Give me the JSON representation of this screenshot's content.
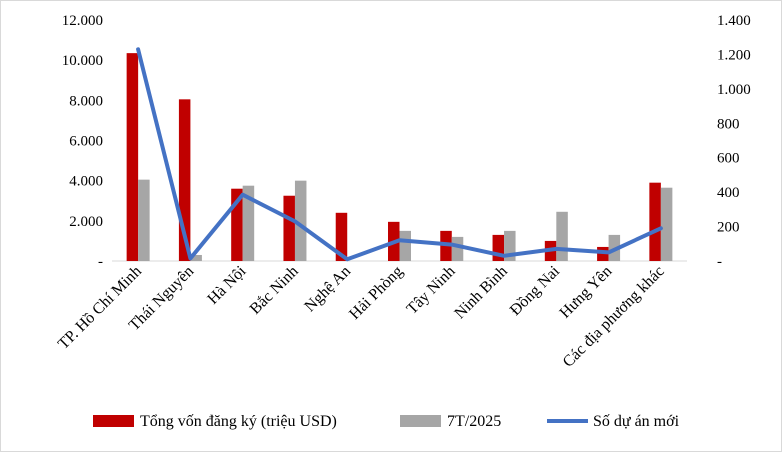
{
  "chart_data": {
    "type": "bar",
    "categories": [
      "TP. Hồ Chí Minh",
      "Thái Nguyên",
      "Hà Nội",
      "Bắc Ninh",
      "Nghệ An",
      "Hải Phòng",
      "Tây Ninh",
      "Ninh Bình",
      "Đồng Nai",
      "Hưng Yên",
      "Các địa phương khác"
    ],
    "series": [
      {
        "name": "Tổng vốn đăng ký (triệu USD)",
        "type": "bar",
        "axis": "left",
        "color": "#c00000",
        "values": [
          10350,
          8050,
          3600,
          3250,
          2400,
          1950,
          1500,
          1300,
          1000,
          700,
          3900
        ]
      },
      {
        "name": "7T/2025",
        "type": "bar",
        "axis": "left",
        "color": "#a6a6a6",
        "values": [
          4050,
          300,
          3750,
          4000,
          0,
          1500,
          1200,
          1500,
          2450,
          1300,
          3650
        ]
      },
      {
        "name": "Số dự án mới",
        "type": "line",
        "axis": "right",
        "color": "#4472c4",
        "values": [
          1230,
          15,
          385,
          230,
          10,
          120,
          95,
          30,
          70,
          50,
          190
        ]
      }
    ],
    "y_left": {
      "min": 0,
      "max": 12000,
      "ticks": [
        "-",
        "2.000",
        "4.000",
        "6.000",
        "8.000",
        "10.000",
        "12.000"
      ]
    },
    "y_right": {
      "min": 0,
      "max": 1400,
      "ticks": [
        "-",
        "200",
        "400",
        "600",
        "800",
        "1.000",
        "1.200",
        "1.400"
      ]
    },
    "grid": false,
    "legend_position": "bottom",
    "title": "",
    "xlabel": "",
    "ylabel": ""
  }
}
